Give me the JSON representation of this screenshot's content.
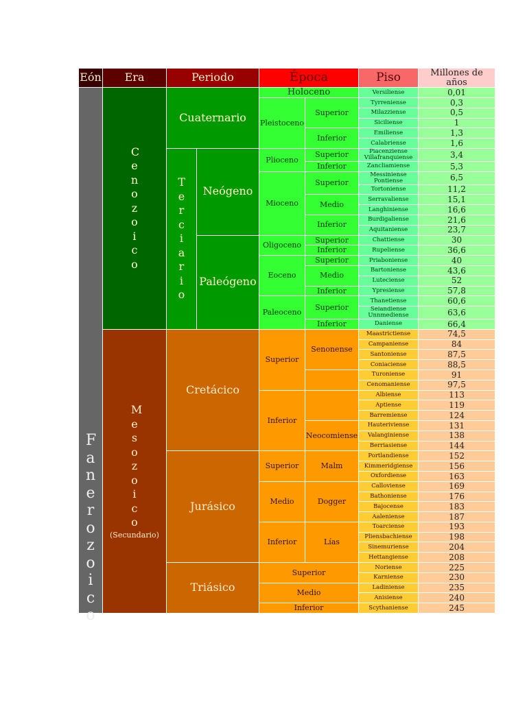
{
  "header": {
    "eon": "Eón",
    "era": "Era",
    "periodo": "Periodo",
    "epoca": "Época",
    "piso": "Piso",
    "ma": "Millones de años"
  },
  "eon": "Fanerozoico",
  "eras": {
    "cenozoico": {
      "name": "Cenozoico",
      "color": "#006600"
    },
    "mesozoico": {
      "name": "Mesozoico",
      "note": "(Secundario)",
      "color": "#993300"
    }
  },
  "periods": {
    "cuaternario": "Cuaternario",
    "terciario": "Terciario",
    "neogeno": "Neógeno",
    "paleogeno": "Paleógeno",
    "cretacico": "Cretácico",
    "jurasico": "Jurásico",
    "triasico": "Triásico"
  },
  "epocas": [
    "Holoceno",
    "Pleistoceno",
    "Plioceno",
    "Mioceno",
    "Oligoceno",
    "Eoceno",
    "Paleoceno",
    "Superior",
    "Inferior",
    "Superior",
    "Medio",
    "Inferior",
    "Superior",
    "Medio",
    "Inferior"
  ],
  "subepocas": [
    "Superior",
    "Inferior",
    "Superior",
    "Inferior",
    "Superior",
    "Medio",
    "Inferior",
    "Superior",
    "Inferior",
    "Superior",
    "Medio",
    "Inferior",
    "Superior",
    "Inferior",
    "Senonense",
    "",
    "",
    "Neocomiense",
    "Malm",
    "Dogger",
    "Lías"
  ],
  "pisos": [
    {
      "name": "Versiliense",
      "ma": "0,01"
    },
    {
      "name": "Tyrreniense",
      "ma": "0,3"
    },
    {
      "name": "Milazziense",
      "ma": "0,5"
    },
    {
      "name": "Siciliense",
      "ma": "1"
    },
    {
      "name": "Emiliense",
      "ma": "1,3"
    },
    {
      "name": "Calabriense",
      "ma": "1,6"
    },
    {
      "name": "Piacenziense\nVillafranquiense",
      "ma": "3,4"
    },
    {
      "name": "Zancliamiense",
      "ma": "5,3"
    },
    {
      "name": "Messiniense\nPontiense",
      "ma": "6,5"
    },
    {
      "name": "Tortoniense",
      "ma": "11,2"
    },
    {
      "name": "Serravaliense",
      "ma": "15,1"
    },
    {
      "name": "Langhiniense",
      "ma": "16,6"
    },
    {
      "name": "Burdigaliense",
      "ma": "21,6"
    },
    {
      "name": "Aquitaniense",
      "ma": "23,7"
    },
    {
      "name": "Chattiense",
      "ma": "30"
    },
    {
      "name": "Rupeliense",
      "ma": "36,6"
    },
    {
      "name": "Priaboniense",
      "ma": "40"
    },
    {
      "name": "Bartoniense",
      "ma": "43,6"
    },
    {
      "name": "Luteciense",
      "ma": "52"
    },
    {
      "name": "Ypresiense",
      "ma": "57,8"
    },
    {
      "name": "Thanetiense",
      "ma": "60,6"
    },
    {
      "name": "Selandiense\nUnnmediense",
      "ma": "63,6"
    },
    {
      "name": "Daniense",
      "ma": "66,4"
    },
    {
      "name": "Maastrictiense",
      "ma": "74,5"
    },
    {
      "name": "Campaniense",
      "ma": "84"
    },
    {
      "name": "Santoniense",
      "ma": "87,5"
    },
    {
      "name": "Coniaciense",
      "ma": "88,5"
    },
    {
      "name": "Turoniense",
      "ma": "91"
    },
    {
      "name": "Cenomaniense",
      "ma": "97,5"
    },
    {
      "name": "Albiense",
      "ma": "113"
    },
    {
      "name": "Aptiense",
      "ma": "119"
    },
    {
      "name": "Barremiense",
      "ma": "124"
    },
    {
      "name": "Hauteriviense",
      "ma": "131"
    },
    {
      "name": "Valanginiense",
      "ma": "138"
    },
    {
      "name": "Berriasiense",
      "ma": "144"
    },
    {
      "name": "Portlandiense",
      "ma": "152"
    },
    {
      "name": "Kimmeridgiense",
      "ma": "156"
    },
    {
      "name": "Oxfordiense",
      "ma": "163"
    },
    {
      "name": "Calloviense",
      "ma": "169"
    },
    {
      "name": "Bathoniense",
      "ma": "176"
    },
    {
      "name": "Bajocense",
      "ma": "183"
    },
    {
      "name": "Aaleniense",
      "ma": "187"
    },
    {
      "name": "Toarciense",
      "ma": "193"
    },
    {
      "name": "Pliensbachiense",
      "ma": "198"
    },
    {
      "name": "Sinemuriense",
      "ma": "204"
    },
    {
      "name": "Hettangiense",
      "ma": "208"
    },
    {
      "name": "Noriense",
      "ma": "225"
    },
    {
      "name": "Karniense",
      "ma": "230"
    },
    {
      "name": "Ladiniense",
      "ma": "235"
    },
    {
      "name": "Anisiense",
      "ma": "240"
    },
    {
      "name": "Scythaniense",
      "ma": "245"
    }
  ]
}
